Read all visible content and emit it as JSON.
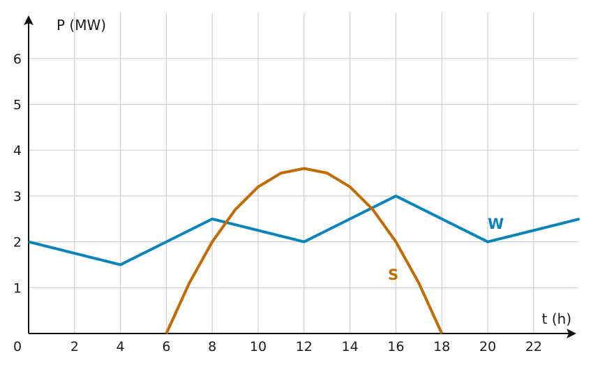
{
  "chart_data": {
    "type": "line",
    "xlabel": "t (h)",
    "ylabel": "P (MW)",
    "xlim": [
      0,
      24
    ],
    "ylim": [
      0,
      7
    ],
    "x_ticks": [
      0,
      2,
      4,
      6,
      8,
      10,
      12,
      14,
      16,
      18,
      20,
      22
    ],
    "y_ticks": [
      1,
      2,
      3,
      4,
      5,
      6
    ],
    "grid": true,
    "series": [
      {
        "name": "W",
        "color": "#0a84b8",
        "x": [
          0,
          4,
          8,
          12,
          16,
          20,
          24
        ],
        "y": [
          2,
          1.5,
          2.5,
          2,
          3,
          2,
          2.5
        ]
      },
      {
        "name": "S",
        "color": "#c06a00",
        "x": [
          6,
          7,
          8,
          9,
          10,
          11,
          12,
          13,
          14,
          15,
          16,
          17,
          18
        ],
        "y": [
          0,
          1.1,
          2.0,
          2.7,
          3.2,
          3.5,
          3.6,
          3.5,
          3.2,
          2.7,
          2.0,
          1.1,
          0
        ]
      }
    ]
  }
}
